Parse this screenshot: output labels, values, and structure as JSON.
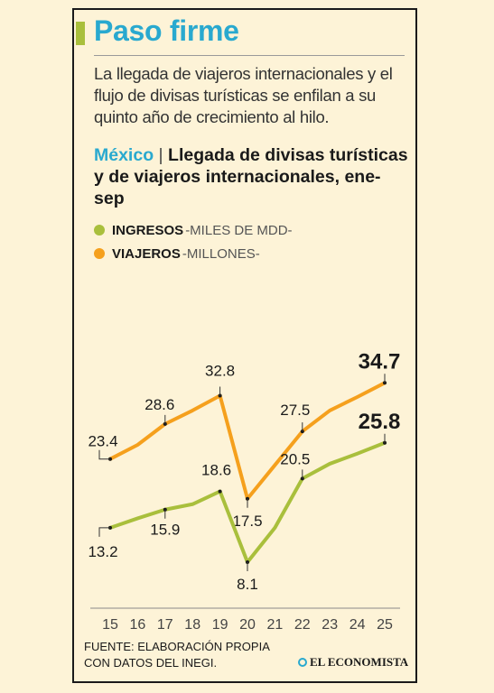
{
  "headline": "Paso firme",
  "dek": "La llegada de viajeros internacionales y el flujo de divisas turísticas se enfilan a su quinto año de crecimiento al hilo.",
  "chart_title": {
    "country": "México",
    "separator": "|",
    "text": "Llegada de divisas turísticas y de viajeros internacionales, ene-sep"
  },
  "source": "FUENTE: ELABORACIÓN PROPIA CON DATOS DEL INEGI.",
  "brand": "EL ECONOMISTA",
  "colors": {
    "ingresos": "#a9bf3c",
    "viajeros": "#f5a01d",
    "accent": "#29a9cf"
  },
  "chart_data": {
    "type": "line",
    "x": [
      "15",
      "16",
      "17",
      "18",
      "19",
      "20",
      "21",
      "22",
      "23",
      "24",
      "25"
    ],
    "series": [
      {
        "key": "viajeros",
        "name": "VIAJEROS",
        "unit": "-MILLONES-",
        "values": [
          23.4,
          25.5,
          28.6,
          30.6,
          32.8,
          17.5,
          22.5,
          27.5,
          30.6,
          32.6,
          34.7
        ],
        "labels": [
          "23.4",
          null,
          "28.6",
          null,
          "32.8",
          "17.5",
          null,
          "27.5",
          null,
          null,
          "34.7"
        ]
      },
      {
        "key": "ingresos",
        "name": "INGRESOS",
        "unit": "-MILES DE MDD-",
        "values": [
          13.2,
          14.6,
          15.9,
          16.7,
          18.6,
          8.1,
          13.2,
          20.5,
          22.7,
          24.2,
          25.8
        ],
        "labels": [
          "13.2",
          "",
          "15.9",
          "",
          "18.6",
          "8.1",
          "",
          "20.5",
          "",
          "",
          "25.8"
        ]
      }
    ],
    "legend": "top-left",
    "grid": false
  }
}
